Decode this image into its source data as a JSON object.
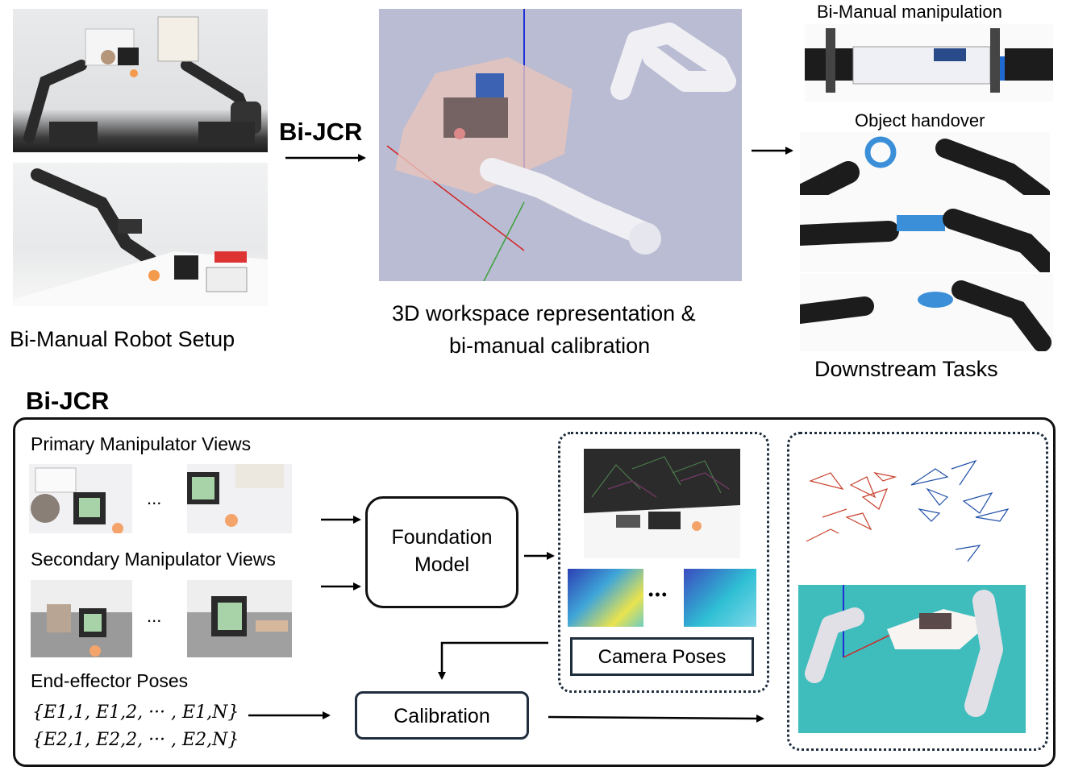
{
  "top": {
    "setup_caption": "Bi-Manual Robot Setup",
    "method_label": "Bi-JCR",
    "workspace_caption_line1": "3D workspace representation &",
    "workspace_caption_line2": "bi-manual calibration",
    "task1_label": "Bi-Manual manipulation",
    "task2_label": "Object handover",
    "downstream_caption": "Downstream Tasks"
  },
  "bottom": {
    "section_title": "Bi-JCR",
    "primary_views_label": "Primary Manipulator Views",
    "secondary_views_label": "Secondary Manipulator Views",
    "ellipsis": "...",
    "ellipsis_dots": "•••",
    "foundation_model_line1": "Foundation",
    "foundation_model_line2": "Model",
    "camera_poses_label": "Camera Poses",
    "ee_poses_label": "End-effector Poses",
    "ee_set1": "{E1,1, E1,2, ··· , E1,N}",
    "ee_set2": "{E2,1, E2,2, ··· , E2,N}",
    "calibration_label": "Calibration"
  },
  "colors": {
    "sim_background": "#b9bcd2",
    "teal_background": "#3fbcbc",
    "arrow": "#000000",
    "frame": "#1f2d3d"
  }
}
